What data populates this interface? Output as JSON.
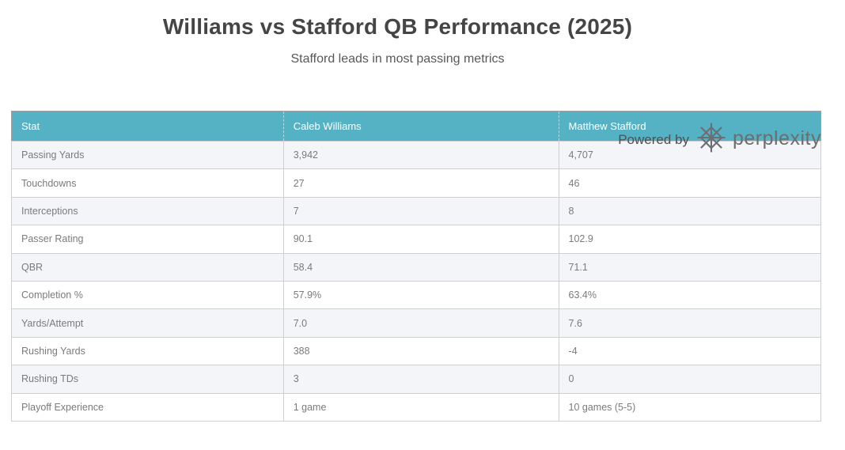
{
  "page": {
    "title": "Williams vs Stafford QB Performance (2025)",
    "subtitle": "Stafford leads in most passing metrics"
  },
  "watermark": {
    "powered_by_label": "Powered by",
    "brand_label": "perplexity",
    "logo_icon": "perplexity-asterisk-icon"
  },
  "colors": {
    "header_bg": "#55b2c5",
    "header_text": "#ffffff",
    "row_alt_bg": "#f4f5f8",
    "row_bg": "#ffffff",
    "cell_text": "#7b7b7b",
    "title_color": "#454545",
    "subtitle_color": "#585858"
  },
  "chart_data": {
    "type": "table",
    "title": "Williams vs Stafford QB Performance (2025)",
    "subtitle": "Stafford leads in most passing metrics",
    "columns": [
      "Stat",
      "Caleb Williams",
      "Matthew Stafford"
    ],
    "rows": [
      [
        "Passing Yards",
        "3,942",
        "4,707"
      ],
      [
        "Touchdowns",
        "27",
        "46"
      ],
      [
        "Interceptions",
        "7",
        "8"
      ],
      [
        "Passer Rating",
        "90.1",
        "102.9"
      ],
      [
        "QBR",
        "58.4",
        "71.1"
      ],
      [
        "Completion %",
        "57.9%",
        "63.4%"
      ],
      [
        "Yards/Attempt",
        "7.0",
        "7.6"
      ],
      [
        "Rushing Yards",
        "388",
        "-4"
      ],
      [
        "Rushing TDs",
        "3",
        "0"
      ],
      [
        "Playoff Experience",
        "1 game",
        "10 games (5-5)"
      ]
    ],
    "layout": {
      "header_style": "teal-filled",
      "row_striping": "odd-rows-light-gray",
      "column_alignment": [
        "left",
        "left",
        "left"
      ]
    }
  }
}
